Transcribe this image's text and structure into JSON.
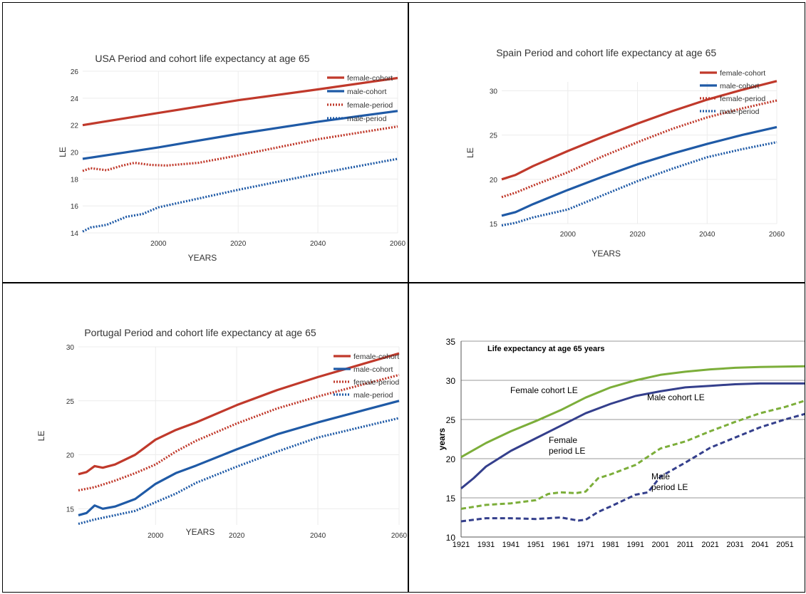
{
  "chart_data": [
    {
      "type": "line",
      "title": "USA Period and cohort life expectancy at age 65",
      "xlabel": "YEARS",
      "ylabel": "LE",
      "xlim": [
        1981,
        2060
      ],
      "ylim": [
        14,
        26
      ],
      "xticks": [
        2000,
        2020,
        2040,
        2060
      ],
      "yticks": [
        14,
        16,
        18,
        20,
        22,
        24,
        26
      ],
      "grid": true,
      "legend": "top-right",
      "series": [
        {
          "name": "female-cohort",
          "style": "solid",
          "color": "#c0392b",
          "points": [
            [
              1981,
              22.0
            ],
            [
              2000,
              22.9
            ],
            [
              2020,
              23.85
            ],
            [
              2040,
              24.65
            ],
            [
              2060,
              25.5
            ]
          ]
        },
        {
          "name": "male-cohort",
          "style": "solid",
          "color": "#1f5aa6",
          "points": [
            [
              1981,
              19.5
            ],
            [
              2000,
              20.35
            ],
            [
              2020,
              21.35
            ],
            [
              2040,
              22.25
            ],
            [
              2060,
              23.05
            ]
          ]
        },
        {
          "name": "female-period",
          "style": "dotted",
          "color": "#c0392b",
          "points": [
            [
              1981,
              18.6
            ],
            [
              1983,
              18.8
            ],
            [
              1987,
              18.65
            ],
            [
              1991,
              19.0
            ],
            [
              1994,
              19.2
            ],
            [
              1998,
              19.05
            ],
            [
              2002,
              19.0
            ],
            [
              2010,
              19.2
            ],
            [
              2020,
              19.75
            ],
            [
              2040,
              20.95
            ],
            [
              2060,
              21.9
            ]
          ]
        },
        {
          "name": "male-period",
          "style": "dotted",
          "color": "#1f5aa6",
          "points": [
            [
              1981,
              14.1
            ],
            [
              1983,
              14.4
            ],
            [
              1987,
              14.6
            ],
            [
              1992,
              15.2
            ],
            [
              1996,
              15.4
            ],
            [
              2000,
              15.9
            ],
            [
              2010,
              16.55
            ],
            [
              2020,
              17.2
            ],
            [
              2040,
              18.4
            ],
            [
              2060,
              19.5
            ]
          ]
        }
      ]
    },
    {
      "type": "line",
      "title": "Spain Period and cohort life expectancy at age 65",
      "xlabel": "YEARS",
      "ylabel": "LE",
      "xlim": [
        1981,
        2060
      ],
      "ylim": [
        15,
        31
      ],
      "xticks": [
        2000,
        2020,
        2040,
        2060
      ],
      "yticks": [
        15,
        20,
        25,
        30
      ],
      "grid": true,
      "legend": "top-right",
      "series": [
        {
          "name": "female-cohort",
          "style": "solid",
          "color": "#c0392b",
          "points": [
            [
              1981,
              20.0
            ],
            [
              1985,
              20.5
            ],
            [
              1990,
              21.5
            ],
            [
              2000,
              23.2
            ],
            [
              2010,
              24.8
            ],
            [
              2020,
              26.3
            ],
            [
              2030,
              27.7
            ],
            [
              2040,
              29.0
            ],
            [
              2050,
              30.1
            ],
            [
              2060,
              31.1
            ]
          ]
        },
        {
          "name": "male-cohort",
          "style": "solid",
          "color": "#1f5aa6",
          "points": [
            [
              1981,
              15.9
            ],
            [
              1985,
              16.3
            ],
            [
              1990,
              17.2
            ],
            [
              2000,
              18.8
            ],
            [
              2010,
              20.3
            ],
            [
              2020,
              21.7
            ],
            [
              2030,
              22.9
            ],
            [
              2040,
              24.0
            ],
            [
              2050,
              25.0
            ],
            [
              2060,
              25.9
            ]
          ]
        },
        {
          "name": "female-period",
          "style": "dotted",
          "color": "#c0392b",
          "points": [
            [
              1981,
              18.0
            ],
            [
              1985,
              18.5
            ],
            [
              1990,
              19.3
            ],
            [
              2000,
              20.8
            ],
            [
              2010,
              22.6
            ],
            [
              2020,
              24.2
            ],
            [
              2030,
              25.7
            ],
            [
              2040,
              27.0
            ],
            [
              2050,
              28.0
            ],
            [
              2060,
              28.9
            ]
          ]
        },
        {
          "name": "male-period",
          "style": "dotted",
          "color": "#1f5aa6",
          "points": [
            [
              1981,
              14.8
            ],
            [
              1985,
              15.1
            ],
            [
              1990,
              15.7
            ],
            [
              2000,
              16.6
            ],
            [
              2010,
              18.2
            ],
            [
              2020,
              19.8
            ],
            [
              2030,
              21.2
            ],
            [
              2040,
              22.5
            ],
            [
              2050,
              23.4
            ],
            [
              2060,
              24.2
            ]
          ]
        }
      ]
    },
    {
      "type": "line",
      "title": "Portugal Period and cohort life expectancy at age 65",
      "xlabel": "YEARS",
      "ylabel": "LE",
      "xlim": [
        1981,
        2060
      ],
      "ylim": [
        13.5,
        30
      ],
      "xticks": [
        2000,
        2020,
        2040,
        2060
      ],
      "yticks": [
        15,
        20,
        25,
        30
      ],
      "grid": true,
      "legend": "top-right",
      "series": [
        {
          "name": "female-cohort",
          "style": "solid",
          "color": "#c0392b",
          "points": [
            [
              1981,
              18.2
            ],
            [
              1983,
              18.4
            ],
            [
              1985,
              18.95
            ],
            [
              1987,
              18.8
            ],
            [
              1990,
              19.1
            ],
            [
              1995,
              20.0
            ],
            [
              2000,
              21.4
            ],
            [
              2005,
              22.3
            ],
            [
              2010,
              23.0
            ],
            [
              2020,
              24.6
            ],
            [
              2030,
              26.0
            ],
            [
              2040,
              27.2
            ],
            [
              2050,
              28.3
            ],
            [
              2060,
              29.4
            ]
          ]
        },
        {
          "name": "male-cohort",
          "style": "solid",
          "color": "#1f5aa6",
          "points": [
            [
              1981,
              14.4
            ],
            [
              1983,
              14.6
            ],
            [
              1985,
              15.3
            ],
            [
              1987,
              15.0
            ],
            [
              1990,
              15.2
            ],
            [
              1995,
              15.9
            ],
            [
              2000,
              17.3
            ],
            [
              2005,
              18.3
            ],
            [
              2010,
              19.0
            ],
            [
              2020,
              20.5
            ],
            [
              2030,
              21.9
            ],
            [
              2040,
              23.0
            ],
            [
              2050,
              24.0
            ],
            [
              2060,
              25.0
            ]
          ]
        },
        {
          "name": "female-period",
          "style": "dotted",
          "color": "#c0392b",
          "points": [
            [
              1981,
              16.7
            ],
            [
              1985,
              17.0
            ],
            [
              1990,
              17.6
            ],
            [
              1995,
              18.3
            ],
            [
              2000,
              19.1
            ],
            [
              2005,
              20.3
            ],
            [
              2010,
              21.3
            ],
            [
              2020,
              22.9
            ],
            [
              2030,
              24.3
            ],
            [
              2040,
              25.4
            ],
            [
              2050,
              26.4
            ],
            [
              2060,
              27.4
            ]
          ]
        },
        {
          "name": "male-period",
          "style": "dotted",
          "color": "#1f5aa6",
          "points": [
            [
              1981,
              13.6
            ],
            [
              1985,
              14.0
            ],
            [
              1990,
              14.4
            ],
            [
              1995,
              14.8
            ],
            [
              2000,
              15.6
            ],
            [
              2005,
              16.4
            ],
            [
              2010,
              17.4
            ],
            [
              2020,
              18.9
            ],
            [
              2030,
              20.3
            ],
            [
              2040,
              21.6
            ],
            [
              2050,
              22.5
            ],
            [
              2060,
              23.4
            ]
          ]
        }
      ]
    },
    {
      "type": "line",
      "title": "Life expectancy at age 65 years",
      "xlabel": "",
      "ylabel": "years",
      "xlim": [
        1921,
        2060
      ],
      "ylim": [
        10,
        35
      ],
      "xticks": [
        1921,
        1931,
        1941,
        1951,
        1961,
        1971,
        1981,
        1991,
        2001,
        2011,
        2021,
        2031,
        2041,
        2051
      ],
      "yticks": [
        10,
        15,
        20,
        25,
        30,
        35
      ],
      "grid": true,
      "series": [
        {
          "name": "Female cohort LE",
          "label": "Female cohort LE",
          "style": "solid",
          "color": "#7cae3a",
          "points": [
            [
              1921,
              20.2
            ],
            [
              1931,
              22.0
            ],
            [
              1941,
              23.5
            ],
            [
              1951,
              24.8
            ],
            [
              1961,
              26.2
            ],
            [
              1971,
              27.8
            ],
            [
              1981,
              29.1
            ],
            [
              1991,
              30.0
            ],
            [
              2001,
              30.7
            ],
            [
              2011,
              31.1
            ],
            [
              2021,
              31.4
            ],
            [
              2031,
              31.6
            ],
            [
              2041,
              31.7
            ],
            [
              2060,
              31.8
            ]
          ]
        },
        {
          "name": "Male cohort LE",
          "label": "Male cohort LE",
          "style": "solid",
          "color": "#343f8c",
          "points": [
            [
              1921,
              16.2
            ],
            [
              1926,
              17.5
            ],
            [
              1931,
              19.0
            ],
            [
              1941,
              21.0
            ],
            [
              1951,
              22.6
            ],
            [
              1961,
              24.2
            ],
            [
              1971,
              25.8
            ],
            [
              1981,
              27.0
            ],
            [
              1991,
              28.0
            ],
            [
              2001,
              28.6
            ],
            [
              2011,
              29.1
            ],
            [
              2021,
              29.3
            ],
            [
              2031,
              29.5
            ],
            [
              2041,
              29.6
            ],
            [
              2060,
              29.6
            ]
          ]
        },
        {
          "name": "Female period LE",
          "label": "Female\nperiod LE",
          "style": "dashed",
          "color": "#7cae3a",
          "points": [
            [
              1921,
              13.6
            ],
            [
              1931,
              14.1
            ],
            [
              1941,
              14.3
            ],
            [
              1951,
              14.7
            ],
            [
              1956,
              15.5
            ],
            [
              1961,
              15.7
            ],
            [
              1967,
              15.6
            ],
            [
              1971,
              15.8
            ],
            [
              1976,
              17.5
            ],
            [
              1981,
              18.0
            ],
            [
              1991,
              19.2
            ],
            [
              2001,
              21.3
            ],
            [
              2011,
              22.2
            ],
            [
              2021,
              23.5
            ],
            [
              2031,
              24.7
            ],
            [
              2041,
              25.8
            ],
            [
              2051,
              26.6
            ],
            [
              2060,
              27.5
            ]
          ]
        },
        {
          "name": "Male period LE",
          "label": "Male\nperiod LE",
          "style": "dashed",
          "color": "#343f8c",
          "points": [
            [
              1921,
              12.0
            ],
            [
              1931,
              12.4
            ],
            [
              1941,
              12.4
            ],
            [
              1951,
              12.3
            ],
            [
              1961,
              12.5
            ],
            [
              1968,
              12.1
            ],
            [
              1971,
              12.2
            ],
            [
              1976,
              13.2
            ],
            [
              1981,
              13.9
            ],
            [
              1991,
              15.4
            ],
            [
              1996,
              15.7
            ],
            [
              2001,
              17.7
            ],
            [
              2011,
              19.5
            ],
            [
              2021,
              21.4
            ],
            [
              2031,
              22.7
            ],
            [
              2041,
              24.0
            ],
            [
              2051,
              25.0
            ],
            [
              2060,
              25.8
            ]
          ]
        }
      ]
    }
  ]
}
